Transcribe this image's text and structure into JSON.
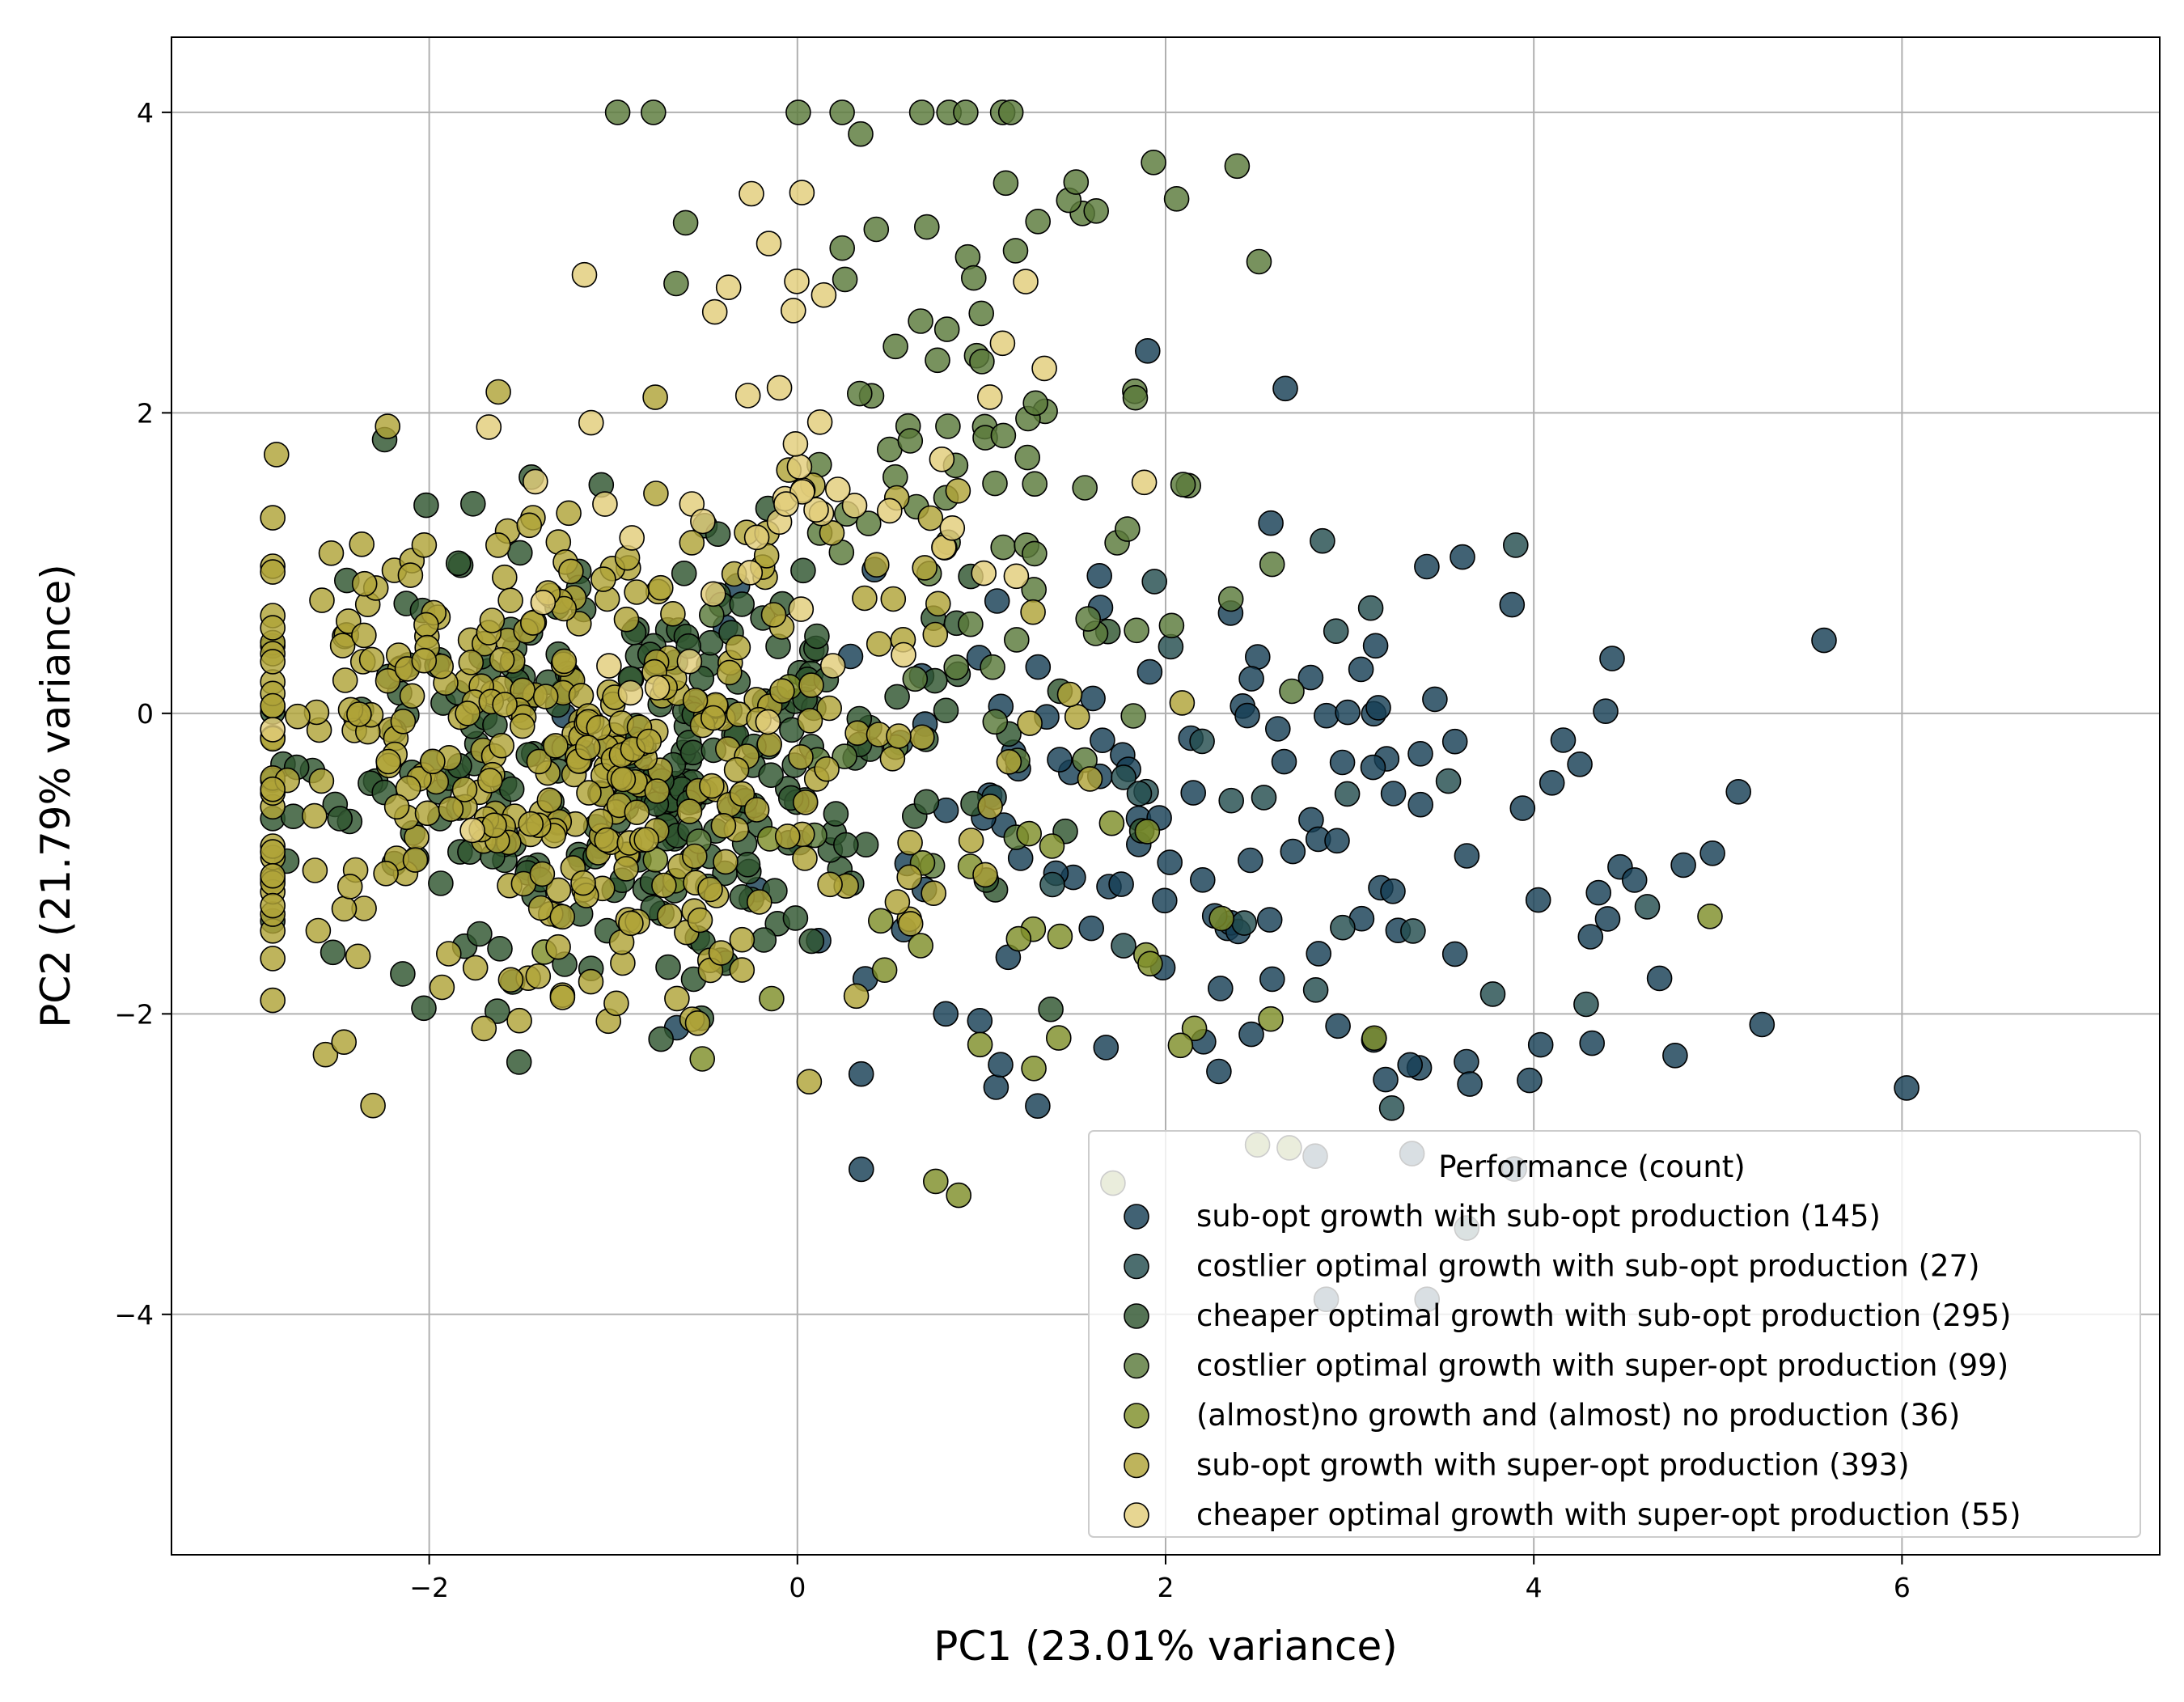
{
  "chart_data": {
    "type": "scatter",
    "title": "",
    "xlabel": "PC1 (23.01% variance)",
    "ylabel": "PC2 (21.79% variance)",
    "xlim": [
      -3.4,
      7.4
    ],
    "ylim": [
      -5.6,
      4.5
    ],
    "xticks": [
      -2,
      0,
      2,
      4,
      6
    ],
    "yticks": [
      -4,
      -2,
      0,
      2,
      4
    ],
    "xtick_labels": [
      "−2",
      "0",
      "2",
      "4",
      "6"
    ],
    "ytick_labels": [
      "−4",
      "−2",
      "0",
      "2",
      "4"
    ],
    "grid": true,
    "legend": {
      "title": "Performance (count)",
      "placement": "lower-right"
    },
    "series": [
      {
        "name": "sub-opt growth with sub-opt production (145)",
        "color": "#173f56",
        "count": 145,
        "center": [
          2.2,
          -1.0
        ],
        "spread": [
          1.3,
          1.1
        ]
      },
      {
        "name": "costlier optimal growth with sub-opt production (27)",
        "color": "#254e4f",
        "count": 27,
        "center": [
          2.8,
          -0.5
        ],
        "spread": [
          1.2,
          1.0
        ]
      },
      {
        "name": "cheaper optimal growth with sub-opt production (295)",
        "color": "#2f5530",
        "count": 295,
        "center": [
          -0.8,
          -0.4
        ],
        "spread": [
          0.9,
          0.7
        ]
      },
      {
        "name": "costlier optimal growth with super-opt production (99)",
        "color": "#5a7a3a",
        "count": 99,
        "center": [
          0.9,
          1.8
        ],
        "spread": [
          0.8,
          1.3
        ]
      },
      {
        "name": "(almost)no growth and (almost) no production (36)",
        "color": "#7f8f2a",
        "count": 36,
        "center": [
          1.5,
          -1.6
        ],
        "spread": [
          1.5,
          1.0
        ]
      },
      {
        "name": "sub-opt growth with super-opt production (393)",
        "color": "#b0a438",
        "count": 393,
        "center": [
          -1.2,
          -0.2
        ],
        "spread": [
          1.1,
          0.9
        ]
      },
      {
        "name": "cheaper optimal growth with super-opt production (55)",
        "color": "#e2cd7a",
        "count": 55,
        "center": [
          -0.2,
          1.3
        ],
        "spread": [
          0.8,
          0.9
        ]
      }
    ]
  }
}
